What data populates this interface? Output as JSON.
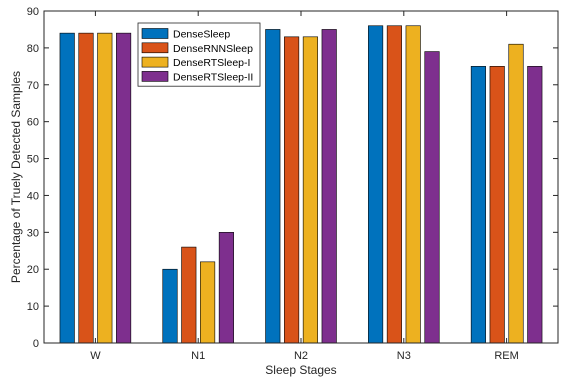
{
  "chart_data": {
    "type": "bar",
    "title": "",
    "xlabel": "Sleep Stages",
    "ylabel": "Percentage of Truely Detected Samples",
    "categories": [
      "W",
      "N1",
      "N2",
      "N3",
      "REM"
    ],
    "ylim": [
      0,
      90
    ],
    "yticks": [
      0,
      10,
      20,
      30,
      40,
      50,
      60,
      70,
      80,
      90
    ],
    "grid": false,
    "legend_position": "top-center",
    "series": [
      {
        "name": "DenseSleep",
        "color": "#0072BD",
        "values": [
          84,
          20,
          85,
          86,
          75
        ]
      },
      {
        "name": "DenseRNNSleep",
        "color": "#D95319",
        "values": [
          84,
          26,
          83,
          86,
          75
        ]
      },
      {
        "name": "DenseRTSleep-I",
        "color": "#EDB120",
        "values": [
          84,
          22,
          83,
          86,
          81
        ]
      },
      {
        "name": "DenseRTSleep-II",
        "color": "#7E2F8E",
        "values": [
          84,
          30,
          85,
          79,
          75
        ]
      }
    ]
  }
}
